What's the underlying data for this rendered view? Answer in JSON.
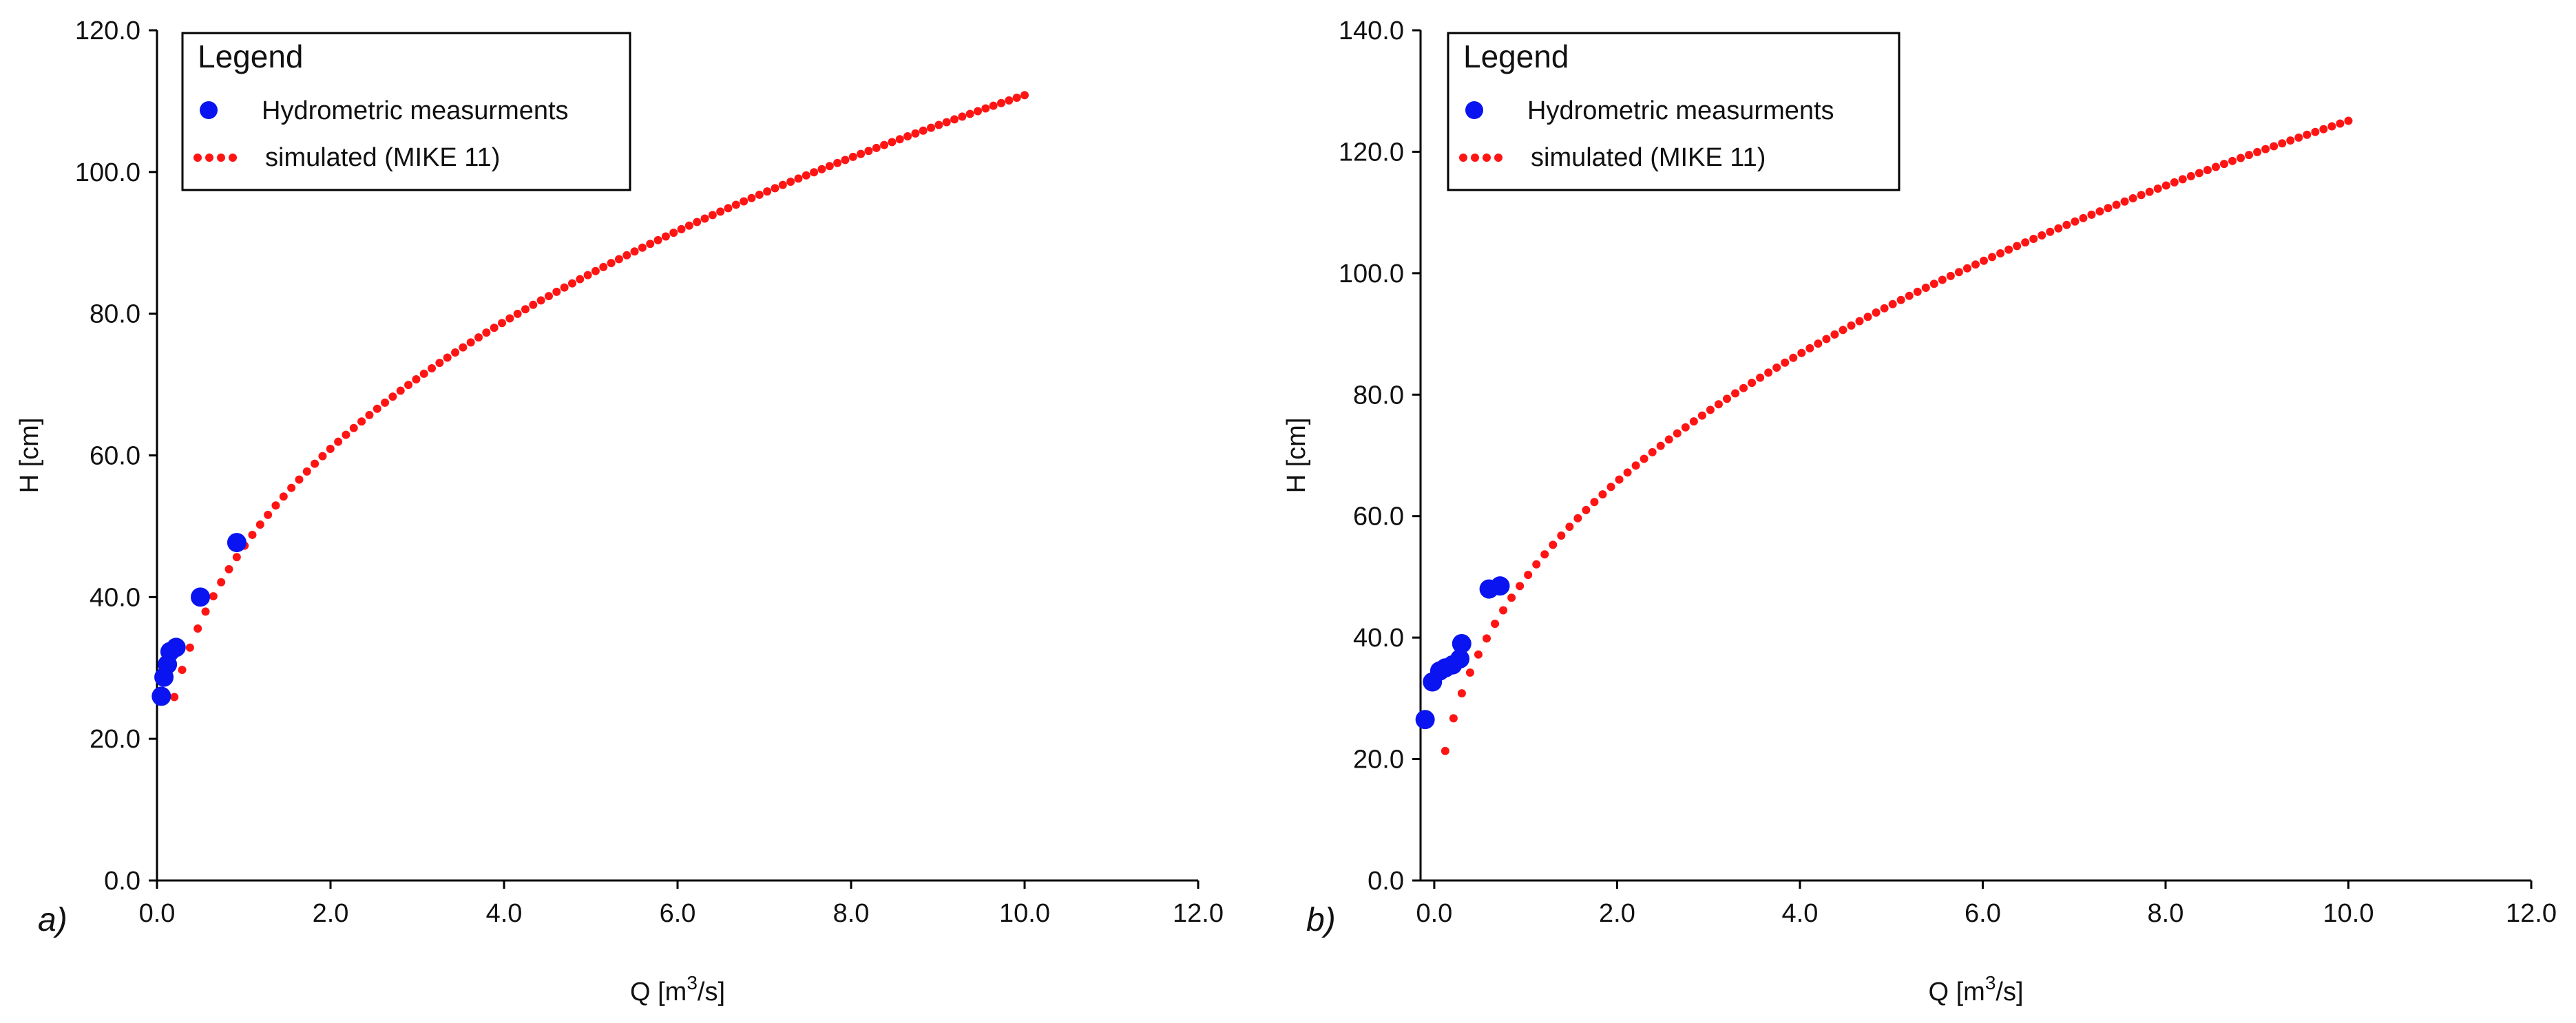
{
  "colors": {
    "measured": "#0A14F0",
    "simulated": "#FF1414",
    "axis": "#000000"
  },
  "chart_data": [
    {
      "type": "scatter",
      "panel_label": "a)",
      "xlabel": {
        "base": "Q [m",
        "sup": "3",
        "tail": "/s]"
      },
      "ylabel": "H [cm]",
      "xlim": [
        0,
        12
      ],
      "ylim": [
        0,
        120
      ],
      "x_ticks": [
        "0.0",
        "2.0",
        "4.0",
        "6.0",
        "8.0",
        "10.0",
        "12.0"
      ],
      "y_ticks": [
        "0.0",
        "20.0",
        "40.0",
        "60.0",
        "80.0",
        "100.0",
        "120.0"
      ],
      "legend": {
        "title": "Legend",
        "entries": [
          "Hydrometric measurments",
          "simulated (MIKE 11)"
        ]
      },
      "series": [
        {
          "name": "Hydrometric measurments",
          "style": "marker",
          "points": [
            [
              0.05,
              26.0
            ],
            [
              0.08,
              28.7
            ],
            [
              0.12,
              30.5
            ],
            [
              0.15,
              32.3
            ],
            [
              0.22,
              32.9
            ],
            [
              0.5,
              40.0
            ],
            [
              0.92,
              47.7
            ]
          ]
        },
        {
          "name": "simulated (MIKE 11)",
          "style": "dotted",
          "curve": {
            "a": 47.1,
            "b": 0.3717,
            "x_start": 0.2,
            "x_end": 10.0,
            "count": 110
          }
        }
      ]
    },
    {
      "type": "scatter",
      "panel_label": "b)",
      "xlabel": {
        "base": "Q [m",
        "sup": "3",
        "tail": "/s]"
      },
      "ylabel": "H [cm]",
      "xlim": [
        -0.15,
        12
      ],
      "ylim": [
        0,
        140
      ],
      "x_ticks": [
        "0.0",
        "2.0",
        "4.0",
        "6.0",
        "8.0",
        "10.0",
        "12.0"
      ],
      "y_ticks": [
        "0.0",
        "20.0",
        "40.0",
        "60.0",
        "80.0",
        "100.0",
        "120.0",
        "140.0"
      ],
      "legend": {
        "title": "Legend",
        "entries": [
          "Hydrometric measurments",
          "simulated (MIKE 11)"
        ]
      },
      "series": [
        {
          "name": "Hydrometric measurments",
          "style": "marker",
          "points": [
            [
              -0.1,
              26.5
            ],
            [
              -0.02,
              32.7
            ],
            [
              0.06,
              34.5
            ],
            [
              0.12,
              35.0
            ],
            [
              0.2,
              35.5
            ],
            [
              0.28,
              36.5
            ],
            [
              0.3,
              39.0
            ],
            [
              0.6,
              48.0
            ],
            [
              0.72,
              48.5
            ]
          ]
        },
        {
          "name": "simulated (MIKE 11)",
          "style": "dotted",
          "curve": {
            "a": 49.8,
            "b": 0.4,
            "x_start": 0.12,
            "x_end": 10.0,
            "count": 110
          }
        }
      ]
    }
  ]
}
